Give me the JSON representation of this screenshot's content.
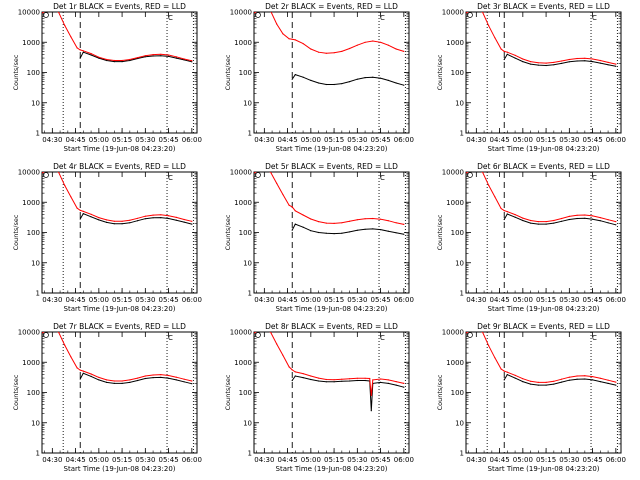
{
  "figure": {
    "x_axis_label": "Start Time (19-Jun-08 04:23:20)",
    "y_axis_label": "Counts/sec",
    "colors": {
      "events": "#000000",
      "lld": "#ff0000",
      "axes": "#000000",
      "background": "#ffffff"
    }
  },
  "chart_data": [
    {
      "type": "line",
      "title": "Det  1r BLACK = Events, RED = LLD",
      "xlabel": "Start Time (19-Jun-08 04:23:20)",
      "ylabel": "Counts/sec",
      "y_scale": "log",
      "ylim": [
        1,
        10000
      ],
      "y_tick_labels": [
        "1",
        "10",
        "100",
        "1000",
        "10000"
      ],
      "xlim": [
        "04:23:20",
        "06:03:20"
      ],
      "x_tick_labels": [
        "04:30",
        "04:45",
        "05:00",
        "05:15",
        "05:30",
        "05:45",
        "06:00"
      ],
      "markers_dotted": [
        "04:37",
        "05:44",
        "06:01"
      ],
      "marker_dashed": "04:48",
      "text_label": "C",
      "x": [
        "04:23",
        "04:26",
        "04:30",
        "04:34",
        "04:38",
        "04:42",
        "04:46",
        "04:48",
        "04:50",
        "04:55",
        "05:00",
        "05:05",
        "05:10",
        "05:15",
        "05:20",
        "05:25",
        "05:30",
        "05:35",
        "05:40",
        "05:45",
        "05:50",
        "05:55",
        "06:00"
      ],
      "series": [
        {
          "name": "Events",
          "color": "#000000",
          "values": [
            null,
            null,
            null,
            null,
            null,
            null,
            null,
            300,
            470,
            380,
            300,
            250,
            230,
            230,
            250,
            290,
            330,
            350,
            360,
            340,
            300,
            260,
            225
          ]
        },
        {
          "name": "LLD",
          "color": "#ff0000",
          "values": [
            9000,
            11000,
            12000,
            10000,
            3600,
            1500,
            650,
            560,
            520,
            420,
            320,
            270,
            250,
            250,
            270,
            310,
            360,
            390,
            400,
            380,
            330,
            280,
            245
          ]
        }
      ]
    },
    {
      "type": "line",
      "title": "Det  2r BLACK = Events, RED = LLD",
      "xlabel": "Start Time (19-Jun-08 04:23:20)",
      "ylabel": "Counts/sec",
      "y_scale": "log",
      "ylim": [
        1,
        10000
      ],
      "y_tick_labels": [
        "1",
        "10",
        "100",
        "1000",
        "10000"
      ],
      "xlim": [
        "04:23:20",
        "06:03:20"
      ],
      "x_tick_labels": [
        "04:30",
        "04:45",
        "05:00",
        "05:15",
        "05:30",
        "05:45",
        "06:00"
      ],
      "markers_dotted": [
        "05:44",
        "06:01"
      ],
      "marker_dashed": "04:48",
      "text_label": "C",
      "x": [
        "04:23",
        "04:26",
        "04:30",
        "04:34",
        "04:38",
        "04:42",
        "04:46",
        "04:48",
        "04:50",
        "04:55",
        "05:00",
        "05:05",
        "05:10",
        "05:15",
        "05:20",
        "05:25",
        "05:30",
        "05:35",
        "05:40",
        "05:45",
        "05:50",
        "05:55",
        "06:00"
      ],
      "series": [
        {
          "name": "Events",
          "color": "#000000",
          "values": [
            null,
            null,
            null,
            null,
            null,
            null,
            null,
            60,
            85,
            70,
            55,
            45,
            40,
            40,
            43,
            50,
            60,
            68,
            70,
            65,
            55,
            45,
            38
          ]
        },
        {
          "name": "LLD",
          "color": "#ff0000",
          "values": [
            9000,
            11000,
            12000,
            11000,
            4000,
            1900,
            1300,
            1250,
            1200,
            900,
            600,
            470,
            430,
            450,
            500,
            620,
            800,
            1000,
            1100,
            1000,
            800,
            600,
            500
          ]
        }
      ]
    },
    {
      "type": "line",
      "title": "Det  3r BLACK = Events, RED = LLD",
      "xlabel": "Start Time (19-Jun-08 04:23:20)",
      "ylabel": "Counts/sec",
      "y_scale": "log",
      "ylim": [
        1,
        10000
      ],
      "y_tick_labels": [
        "1",
        "10",
        "100",
        "1000",
        "10000"
      ],
      "xlim": [
        "04:23:20",
        "06:03:20"
      ],
      "x_tick_labels": [
        "04:30",
        "04:45",
        "05:00",
        "05:15",
        "05:30",
        "05:45",
        "06:00"
      ],
      "markers_dotted": [
        "04:37",
        "05:44",
        "06:01"
      ],
      "marker_dashed": "04:48",
      "text_label": "C",
      "x": [
        "04:23",
        "04:26",
        "04:30",
        "04:34",
        "04:38",
        "04:42",
        "04:46",
        "04:48",
        "04:50",
        "04:55",
        "05:00",
        "05:05",
        "05:10",
        "05:15",
        "05:20",
        "05:25",
        "05:30",
        "05:35",
        "05:40",
        "05:45",
        "05:50",
        "05:55",
        "06:00"
      ],
      "series": [
        {
          "name": "Events",
          "color": "#000000",
          "values": [
            null,
            null,
            null,
            null,
            null,
            null,
            null,
            270,
            400,
            300,
            230,
            190,
            175,
            170,
            180,
            200,
            225,
            240,
            245,
            230,
            205,
            180,
            160
          ]
        },
        {
          "name": "LLD",
          "color": "#ff0000",
          "values": [
            9000,
            11000,
            12000,
            10000,
            3500,
            1400,
            600,
            500,
            470,
            370,
            280,
            230,
            210,
            205,
            215,
            240,
            270,
            290,
            295,
            280,
            250,
            215,
            190
          ]
        }
      ]
    },
    {
      "type": "line",
      "title": "Det  4r BLACK = Events, RED = LLD",
      "xlabel": "Start Time (19-Jun-08 04:23:20)",
      "ylabel": "Counts/sec",
      "y_scale": "log",
      "ylim": [
        1,
        10000
      ],
      "y_tick_labels": [
        "1",
        "10",
        "100",
        "1000",
        "10000"
      ],
      "xlim": [
        "04:23:20",
        "06:03:20"
      ],
      "x_tick_labels": [
        "04:30",
        "04:45",
        "05:00",
        "05:15",
        "05:30",
        "05:45",
        "06:00"
      ],
      "markers_dotted": [
        "04:37",
        "05:44",
        "06:01"
      ],
      "marker_dashed": "04:48",
      "text_label": "C",
      "x": [
        "04:23",
        "04:26",
        "04:30",
        "04:34",
        "04:38",
        "04:42",
        "04:46",
        "04:48",
        "04:50",
        "04:55",
        "05:00",
        "05:05",
        "05:10",
        "05:15",
        "05:20",
        "05:25",
        "05:30",
        "05:35",
        "05:40",
        "05:45",
        "05:50",
        "05:55",
        "06:00"
      ],
      "series": [
        {
          "name": "Events",
          "color": "#000000",
          "values": [
            null,
            null,
            null,
            null,
            null,
            null,
            null,
            280,
            420,
            330,
            260,
            215,
            195,
            195,
            210,
            245,
            285,
            305,
            310,
            290,
            255,
            220,
            190
          ]
        },
        {
          "name": "LLD",
          "color": "#ff0000",
          "values": [
            9000,
            11000,
            12000,
            10000,
            3600,
            1500,
            640,
            540,
            500,
            400,
            310,
            260,
            235,
            235,
            255,
            295,
            345,
            375,
            385,
            360,
            315,
            270,
            235
          ]
        }
      ]
    },
    {
      "type": "line",
      "title": "Det  5r BLACK = Events, RED = LLD",
      "xlabel": "Start Time (19-Jun-08 04:23:20)",
      "ylabel": "Counts/sec",
      "y_scale": "log",
      "ylim": [
        1,
        10000
      ],
      "y_tick_labels": [
        "1",
        "10",
        "100",
        "1000",
        "10000"
      ],
      "xlim": [
        "04:23:20",
        "06:03:20"
      ],
      "x_tick_labels": [
        "04:30",
        "04:45",
        "05:00",
        "05:15",
        "05:30",
        "05:45",
        "06:00"
      ],
      "markers_dotted": [
        "05:44",
        "06:01"
      ],
      "marker_dashed": "04:48",
      "text_label": "C",
      "x": [
        "04:23",
        "04:26",
        "04:30",
        "04:34",
        "04:38",
        "04:42",
        "04:46",
        "04:48",
        "04:50",
        "04:55",
        "05:00",
        "05:05",
        "05:10",
        "05:15",
        "05:20",
        "05:25",
        "05:30",
        "05:35",
        "05:40",
        "05:45",
        "05:50",
        "05:55",
        "06:00"
      ],
      "series": [
        {
          "name": "Events",
          "color": "#000000",
          "values": [
            null,
            null,
            null,
            null,
            null,
            null,
            null,
            120,
            190,
            150,
            115,
            100,
            95,
            92,
            95,
            105,
            118,
            128,
            132,
            125,
            110,
            98,
            88
          ]
        },
        {
          "name": "LLD",
          "color": "#ff0000",
          "values": [
            9000,
            11000,
            12000,
            10000,
            4200,
            1800,
            800,
            700,
            520,
            380,
            280,
            230,
            205,
            200,
            210,
            235,
            265,
            285,
            290,
            275,
            245,
            210,
            185
          ]
        }
      ]
    },
    {
      "type": "line",
      "title": "Det  6r BLACK = Events, RED = LLD",
      "xlabel": "Start Time (19-Jun-08 04:23:20)",
      "ylabel": "Counts/sec",
      "y_scale": "log",
      "ylim": [
        1,
        10000
      ],
      "y_tick_labels": [
        "1",
        "10",
        "100",
        "1000",
        "10000"
      ],
      "xlim": [
        "04:23:20",
        "06:03:20"
      ],
      "x_tick_labels": [
        "04:30",
        "04:45",
        "05:00",
        "05:15",
        "05:30",
        "05:45",
        "06:00"
      ],
      "markers_dotted": [
        "04:37",
        "05:44",
        "06:01"
      ],
      "marker_dashed": "04:48",
      "text_label": "C",
      "x": [
        "04:23",
        "04:26",
        "04:30",
        "04:34",
        "04:38",
        "04:42",
        "04:46",
        "04:48",
        "04:50",
        "04:55",
        "05:00",
        "05:05",
        "05:10",
        "05:15",
        "05:20",
        "05:25",
        "05:30",
        "05:35",
        "05:40",
        "05:45",
        "05:50",
        "05:55",
        "06:00"
      ],
      "series": [
        {
          "name": "Events",
          "color": "#000000",
          "values": [
            null,
            null,
            null,
            null,
            null,
            null,
            null,
            270,
            410,
            320,
            250,
            205,
            190,
            190,
            205,
            235,
            270,
            290,
            295,
            275,
            245,
            210,
            180
          ]
        },
        {
          "name": "LLD",
          "color": "#ff0000",
          "values": [
            9000,
            11000,
            12000,
            10000,
            3600,
            1500,
            620,
            530,
            490,
            390,
            300,
            250,
            230,
            230,
            250,
            290,
            340,
            370,
            380,
            355,
            310,
            265,
            230
          ]
        }
      ]
    },
    {
      "type": "line",
      "title": "Det  7r BLACK = Events, RED = LLD",
      "xlabel": "Start Time (19-Jun-08 04:23:20)",
      "ylabel": "Counts/sec",
      "y_scale": "log",
      "ylim": [
        1,
        10000
      ],
      "y_tick_labels": [
        "1",
        "10",
        "100",
        "1000",
        "10000"
      ],
      "xlim": [
        "04:23:20",
        "06:03:20"
      ],
      "x_tick_labels": [
        "04:30",
        "04:45",
        "05:00",
        "05:15",
        "05:30",
        "05:45",
        "06:00"
      ],
      "markers_dotted": [
        "04:37",
        "05:44",
        "06:01"
      ],
      "marker_dashed": "04:48",
      "text_label": "C",
      "x": [
        "04:23",
        "04:26",
        "04:30",
        "04:34",
        "04:38",
        "04:42",
        "04:46",
        "04:48",
        "04:50",
        "04:55",
        "05:00",
        "05:05",
        "05:10",
        "05:15",
        "05:20",
        "05:25",
        "05:30",
        "05:35",
        "05:40",
        "05:45",
        "05:50",
        "05:55",
        "06:00"
      ],
      "series": [
        {
          "name": "Events",
          "color": "#000000",
          "values": [
            null,
            null,
            null,
            null,
            null,
            null,
            null,
            280,
            430,
            340,
            260,
            215,
            200,
            200,
            215,
            250,
            290,
            310,
            315,
            295,
            260,
            225,
            195
          ]
        },
        {
          "name": "LLD",
          "color": "#ff0000",
          "values": [
            9000,
            11000,
            12000,
            10000,
            3700,
            1500,
            650,
            550,
            510,
            410,
            315,
            260,
            240,
            240,
            260,
            300,
            350,
            380,
            390,
            365,
            320,
            275,
            240
          ]
        }
      ]
    },
    {
      "type": "line",
      "title": "Det  8r BLACK = Events, RED = LLD",
      "xlabel": "Start Time (19-Jun-08 04:23:20)",
      "ylabel": "Counts/sec",
      "y_scale": "log",
      "ylim": [
        1,
        10000
      ],
      "y_tick_labels": [
        "1",
        "10",
        "100",
        "1000",
        "10000"
      ],
      "xlim": [
        "04:23:20",
        "06:03:20"
      ],
      "x_tick_labels": [
        "04:30",
        "04:45",
        "05:00",
        "05:15",
        "05:30",
        "05:45",
        "06:00"
      ],
      "markers_dotted": [
        "05:44",
        "06:01"
      ],
      "marker_dashed": "04:48",
      "text_label": "C",
      "x": [
        "04:23",
        "04:26",
        "04:30",
        "04:34",
        "04:38",
        "04:42",
        "04:46",
        "04:48",
        "04:50",
        "04:55",
        "05:00",
        "05:05",
        "05:10",
        "05:15",
        "05:20",
        "05:25",
        "05:30",
        "05:35",
        "05:38",
        "05:39",
        "05:40",
        "05:45",
        "05:50",
        "05:55",
        "06:00"
      ],
      "series": [
        {
          "name": "Events",
          "color": "#000000",
          "values": [
            null,
            null,
            null,
            null,
            null,
            null,
            null,
            250,
            350,
            310,
            270,
            240,
            225,
            225,
            235,
            240,
            250,
            250,
            240,
            25,
            200,
            215,
            200,
            175,
            150
          ]
        },
        {
          "name": "LLD",
          "color": "#ff0000",
          "values": [
            9000,
            11000,
            12000,
            10000,
            4000,
            1700,
            700,
            560,
            480,
            420,
            350,
            300,
            270,
            265,
            275,
            285,
            295,
            295,
            290,
            80,
            260,
            280,
            260,
            230,
            200
          ]
        }
      ]
    },
    {
      "type": "line",
      "title": "Det  9r BLACK = Events, RED = LLD",
      "xlabel": "Start Time (19-Jun-08 04:23:20)",
      "ylabel": "Counts/sec",
      "y_scale": "log",
      "ylim": [
        1,
        10000
      ],
      "y_tick_labels": [
        "1",
        "10",
        "100",
        "1000",
        "10000"
      ],
      "xlim": [
        "04:23:20",
        "06:03:20"
      ],
      "x_tick_labels": [
        "04:30",
        "04:45",
        "05:00",
        "05:15",
        "05:30",
        "05:45",
        "06:00"
      ],
      "markers_dotted": [
        "04:37",
        "05:44",
        "06:01"
      ],
      "marker_dashed": "04:48",
      "text_label": "C",
      "x": [
        "04:23",
        "04:26",
        "04:30",
        "04:34",
        "04:38",
        "04:42",
        "04:46",
        "04:48",
        "04:50",
        "04:55",
        "05:00",
        "05:05",
        "05:10",
        "05:15",
        "05:20",
        "05:25",
        "05:30",
        "05:35",
        "05:40",
        "05:45",
        "05:50",
        "05:55",
        "06:00"
      ],
      "series": [
        {
          "name": "Events",
          "color": "#000000",
          "values": [
            null,
            null,
            null,
            null,
            null,
            null,
            null,
            260,
            390,
            300,
            230,
            190,
            175,
            175,
            190,
            220,
            255,
            275,
            280,
            260,
            230,
            200,
            175
          ]
        },
        {
          "name": "LLD",
          "color": "#ff0000",
          "values": [
            9000,
            11000,
            12000,
            10000,
            3500,
            1400,
            600,
            510,
            470,
            370,
            285,
            235,
            215,
            215,
            235,
            275,
            320,
            350,
            360,
            335,
            295,
            255,
            220
          ]
        }
      ]
    }
  ]
}
